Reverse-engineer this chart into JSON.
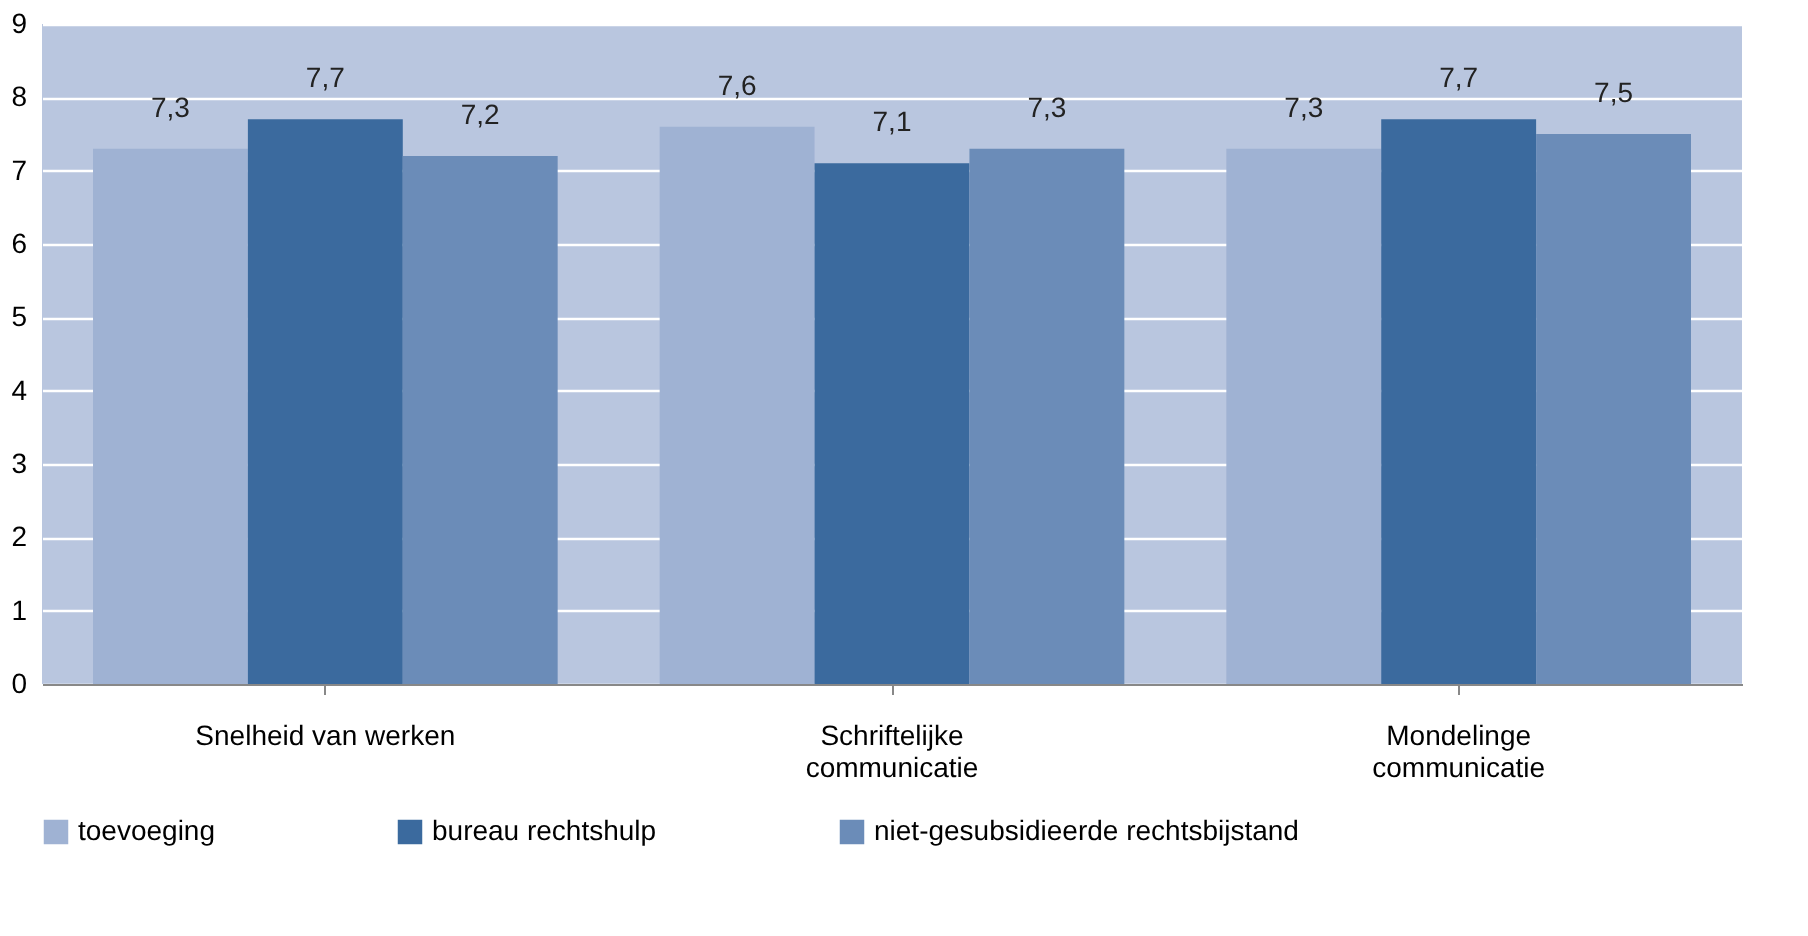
{
  "chart_data": {
    "type": "bar",
    "categories": [
      "Snelheid van werken",
      "Schriftelijke\ncommunicatie",
      "Mondelinge\ncommunicatie"
    ],
    "series": [
      {
        "name": "toevoeging",
        "color": "#9fb2d3",
        "values": [
          7.3,
          7.6,
          7.3
        ],
        "value_labels": [
          "7,3",
          "7,6",
          "7,3"
        ]
      },
      {
        "name": "bureau rechtshulp",
        "color": "#3b6a9e",
        "values": [
          7.7,
          7.1,
          7.7
        ],
        "value_labels": [
          "7,7",
          "7,1",
          "7,7"
        ]
      },
      {
        "name": "niet-gesubsidieerde rechtsbijstand",
        "color": "#6b8cb8",
        "values": [
          7.2,
          7.3,
          7.5
        ],
        "value_labels": [
          "7,2",
          "7,3",
          "7,5"
        ]
      }
    ],
    "ylim": [
      0,
      9
    ],
    "yticks": [
      0,
      1,
      2,
      3,
      4,
      5,
      6,
      7,
      8,
      9
    ],
    "grid": "y",
    "legend": "bottom"
  }
}
